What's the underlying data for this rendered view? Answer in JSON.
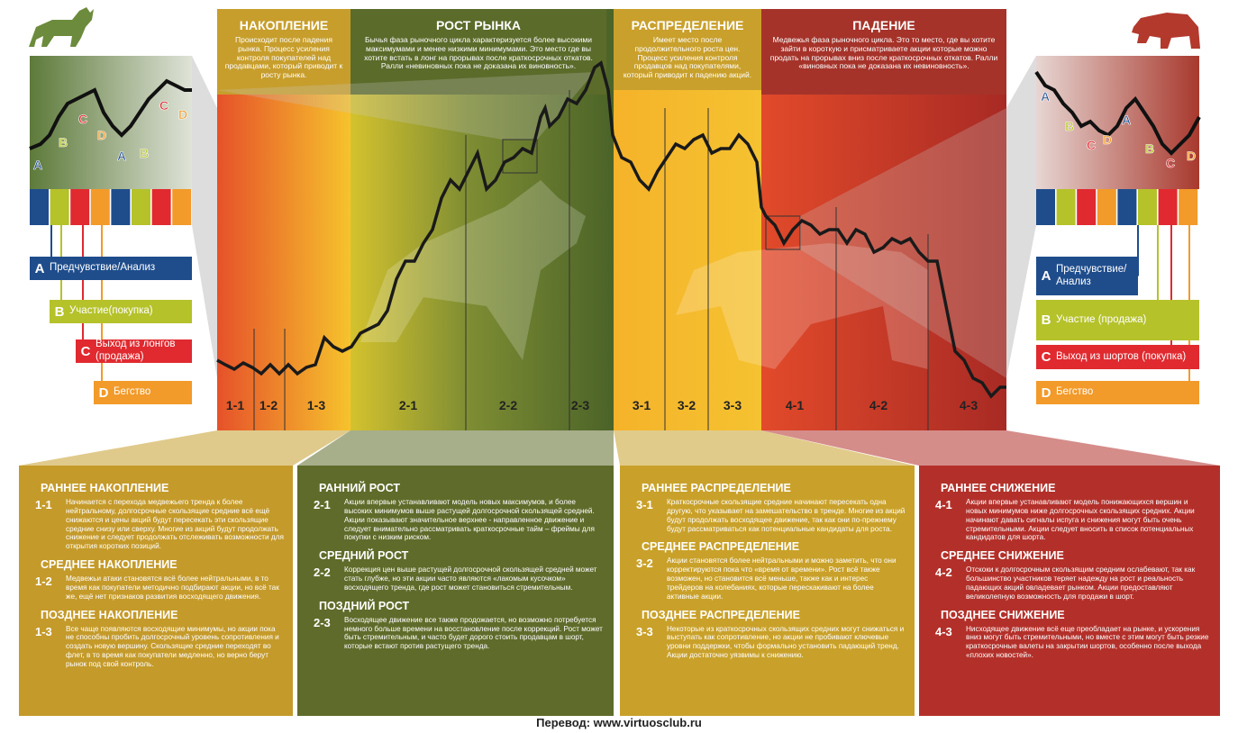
{
  "phases": [
    {
      "title": "НАКОПЛЕНИЕ",
      "description": "Происходит после падения рынка. Процесс усиления контроля покупателей над продавцами, который приводит к росту рынка.",
      "stages": [
        "1-1",
        "1-2",
        "1-3"
      ]
    },
    {
      "title": "РОСТ РЫНКА",
      "description": "Бычья фаза рыночного цикла характеризуется более высокими максимумами и менее низкими минимумами. Это место где вы хотите встать в лонг на прорывах после краткосрочных откатов. Ралли «невиновных пока не доказана их виновность».",
      "stages": [
        "2-1",
        "2-2",
        "2-3"
      ]
    },
    {
      "title": "РАСПРЕДЕЛЕНИЕ",
      "description": "Имеет место после продолжительного роста цен. Процесс усиления контроля продавцов над покупателями, который приводит к падению акций.",
      "stages": [
        "3-1",
        "3-2",
        "3-3"
      ]
    },
    {
      "title": "ПАДЕНИЕ",
      "description": "Медвежья фаза рыночного цикла. Это то место, где вы хотите зайти в короткую и присматриваете акции которые можно продать на прорывах вниз после краткосрочных откатов. Ралли «виновных пока не доказана их невиновность».",
      "stages": [
        "4-1",
        "4-2",
        "4-3"
      ]
    }
  ],
  "left_mini_letters": [
    "A",
    "B",
    "C",
    "D",
    "A",
    "B",
    "C",
    "D"
  ],
  "right_mini_letters": [
    "A",
    "B",
    "C",
    "D",
    "A",
    "B",
    "C",
    "D"
  ],
  "left_legend": [
    {
      "letter": "A",
      "label": "Предчувствие/Анализ"
    },
    {
      "letter": "B",
      "label": "Участие(покупка)"
    },
    {
      "letter": "C",
      "label": "Выход из лонгов (продажа)"
    },
    {
      "letter": "D",
      "label": "Бегство"
    }
  ],
  "right_legend": [
    {
      "letter": "A",
      "label": "Предчувствие/ Анализ"
    },
    {
      "letter": "B",
      "label": "Участие (продажа)"
    },
    {
      "letter": "C",
      "label": "Выход из шортов (покупка)"
    },
    {
      "letter": "D",
      "label": "Бегство"
    }
  ],
  "details": [
    [
      {
        "heading": "РАННЕЕ НАКОПЛЕНИЕ",
        "code": "1-1",
        "text": "Начинается с перехода медвежьего тренда к более нейтральному, долгосрочные скользящие средние всё ещё снижаются и цены акций будут пересекать эти скользящие средние снизу или сверху. Многие из акций будут продолжать снижение и следует продолжать отслеживать возможности для открытия коротких позиций."
      },
      {
        "heading": "СРЕДНЕЕ НАКОПЛЕНИЕ",
        "code": "1-2",
        "text": "Медвежьи атаки становятся всё более нейтральными, в то время как покупатели методично подбирают акции, но всё так же, ещё нет признаков развития восходящего движения."
      },
      {
        "heading": "ПОЗДНЕЕ НАКОПЛЕНИЕ",
        "code": "1-3",
        "text": "Все чаще появляются восходящие минимумы, но акции пока не способны пробить долгосрочный уровень сопротивления и создать новую вершину. Скользящие средние переходят во флет, в то время как покупатели медленно, но верно берут рынок под свой контроль."
      }
    ],
    [
      {
        "heading": "РАННИЙ РОСТ",
        "code": "2-1",
        "text": "Акции впервые устанавливают модель новых максимумов, и более высоких минимумов выше растущей долгосрочной скользящей средней. Акции показывают значительное верхнее - направленное движение и следует внимательно рассматривать краткосрочные тайм – фреймы для покупки с низким риском."
      },
      {
        "heading": "СРЕДНИЙ РОСТ",
        "code": "2-2",
        "text": "Коррекция цен выше растущей долгосрочной скользящей средней может стать глубже, но эти акции часто являются «лакомым кусочком» восходящего тренда, где рост может становиться стремительным."
      },
      {
        "heading": "ПОЗДНИЙ РОСТ",
        "code": "2-3",
        "text": "Восходящее движение все также продожается, но возможно потребуется немного больше времени на восстановление после коррекций. Рост может быть стремительным, и часто будет дорого стоить продавцам в шорт, которые встают против растущего тренда."
      }
    ],
    [
      {
        "heading": "РАННЕЕ РАСПРЕДЕЛЕНИЕ",
        "code": "3-1",
        "text": "Краткосрочные скользящие средние начинают пересекать одна другую, что указывает на замешательство в тренде. Многие из акций будут продолжать восходящее движение, так как они по-прежнему будут рассматриваться как потенциальные кандидаты для роста."
      },
      {
        "heading": "СРЕДНЕЕ РАСПРЕДЕЛЕНИЕ",
        "code": "3-2",
        "text": "Акции становятся более нейтральными и можно заметить, что они корректируются пока что «время от времени». Рост всё также возможен, но становится всё меньше, также как и интерес трейдеров на колебаниях, которые перескакивают на более активные акции."
      },
      {
        "heading": "ПОЗДНЕЕ РАСПРЕДЕЛЕНИЕ",
        "code": "3-3",
        "text": "Некоторые из краткосрочных скользящих средних могут снижаться и выступать как сопротивление, но акции не пробивают ключевые уровни поддержки, чтобы формально установить падающий тренд. Акции достаточно уязвимы к снижению."
      }
    ],
    [
      {
        "heading": "РАННЕЕ СНИЖЕНИЕ",
        "code": "4-1",
        "text": "Акции впервые устанавливают модель понижающихся вершин и новых минимумов ниже долгосрочных скользящих средних. Акции начинают давать сигналы испуга и снижения могут быть очень стремительными. Акции следует вносить в список потенциальных кандидатов для шорта."
      },
      {
        "heading": "СРЕДНЕЕ СНИЖЕНИЕ",
        "code": "4-2",
        "text": "Отскоки к долгосрочным скользящим средним ослабевают, так как большинство участников теряет надежду на рост и реальность падающих акций овладевает рынком. Акции предоставляют великолепную возможность для продажи в шорт."
      },
      {
        "heading": "ПОЗДНЕЕ СНИЖЕНИЕ",
        "code": "4-3",
        "text": "Нисходящее движение всё еще преобладает на рынке, и ускорения вниз могут быть стремительными, но вместе с этим могут быть резкие краткосрочные валеты на закрытии шортов, особенно после выхода «плохих новостей»."
      }
    ]
  ],
  "footer": "Перевод: www.virtuosclub.ru"
}
